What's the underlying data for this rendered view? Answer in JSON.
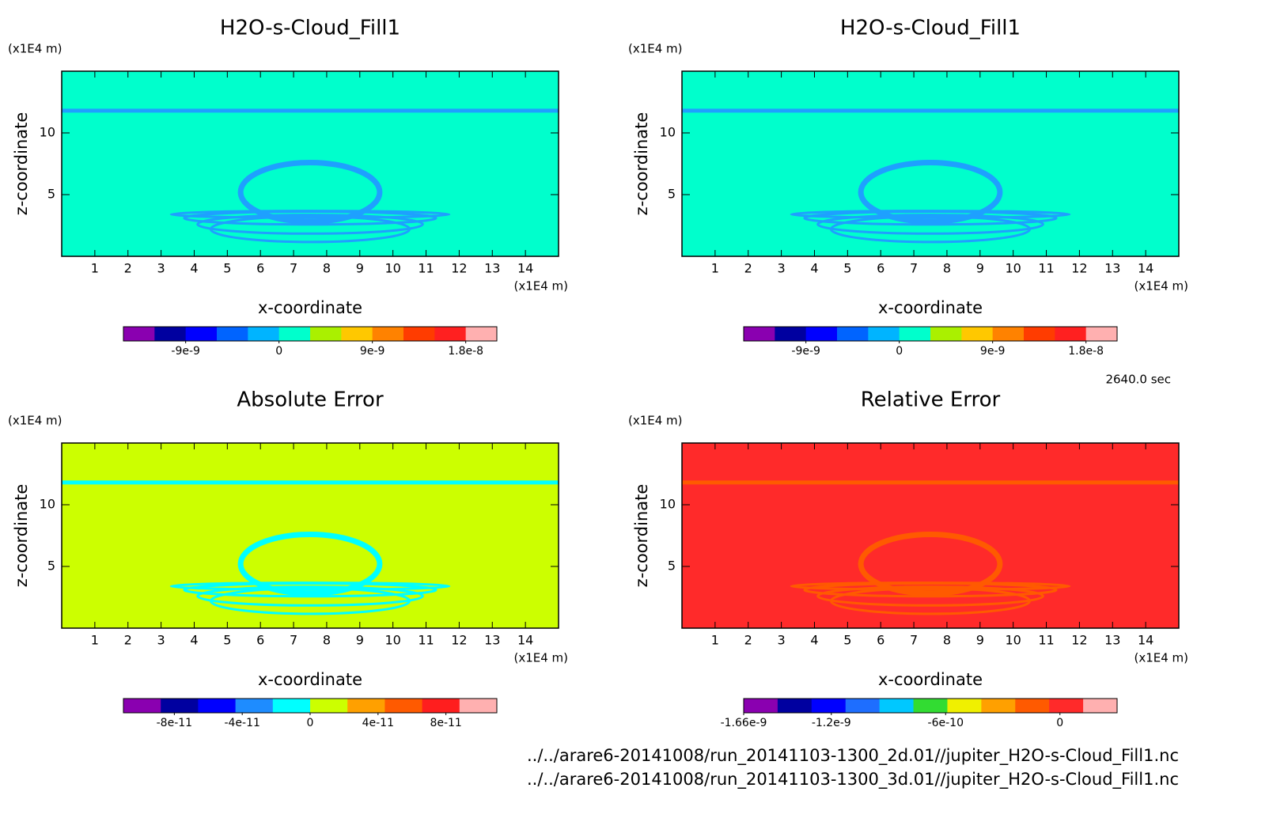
{
  "chart_data": [
    {
      "type": "contour",
      "title": "H2O-s-Cloud_Fill1",
      "xlabel": "x-coordinate",
      "ylabel": "z-coordinate",
      "xunit": "(x1E4 m)",
      "yunit": "(x1E4 m)",
      "xlim": [
        0,
        15
      ],
      "ylim": [
        0,
        15
      ],
      "xticks": [
        1,
        2,
        3,
        4,
        5,
        6,
        7,
        8,
        9,
        10,
        11,
        12,
        13,
        14
      ],
      "yticks": [
        5,
        10
      ],
      "field_color": "#00ffcc",
      "feature_color": "#1ea0ff",
      "colorbar": {
        "clim": [
          -1.5e-08,
          2.1e-08
        ],
        "ticks": [
          -9e-09,
          0,
          9e-09,
          1.8e-08
        ],
        "colors": [
          "#8a00b0",
          "#0000a0",
          "#0000ff",
          "#0064ff",
          "#00b4ff",
          "#00ffcc",
          "#aaf000",
          "#ffc800",
          "#ff8200",
          "#ff3c00",
          "#ff2020",
          "#ffb0b0"
        ]
      }
    },
    {
      "type": "contour",
      "title": "H2O-s-Cloud_Fill1",
      "xlabel": "x-coordinate",
      "ylabel": "z-coordinate",
      "xunit": "(x1E4 m)",
      "yunit": "(x1E4 m)",
      "xlim": [
        0,
        15
      ],
      "ylim": [
        0,
        15
      ],
      "xticks": [
        1,
        2,
        3,
        4,
        5,
        6,
        7,
        8,
        9,
        10,
        11,
        12,
        13,
        14
      ],
      "yticks": [
        5,
        10
      ],
      "field_color": "#00ffcc",
      "feature_color": "#1ea0ff",
      "colorbar": {
        "clim": [
          -1.5e-08,
          2.1e-08
        ],
        "ticks": [
          -9e-09,
          0,
          9e-09,
          1.8e-08
        ],
        "colors": [
          "#8a00b0",
          "#0000a0",
          "#0000ff",
          "#0064ff",
          "#00b4ff",
          "#00ffcc",
          "#aaf000",
          "#ffc800",
          "#ff8200",
          "#ff3c00",
          "#ff2020",
          "#ffb0b0"
        ]
      }
    },
    {
      "type": "contour",
      "title": "Absolute Error",
      "xlabel": "x-coordinate",
      "ylabel": "z-coordinate",
      "xunit": "(x1E4 m)",
      "yunit": "(x1E4 m)",
      "xlim": [
        0,
        15
      ],
      "ylim": [
        0,
        15
      ],
      "xticks": [
        1,
        2,
        3,
        4,
        5,
        6,
        7,
        8,
        9,
        10,
        11,
        12,
        13,
        14
      ],
      "yticks": [
        5,
        10
      ],
      "field_color": "#ccff00",
      "feature_color": "#00ffff",
      "colorbar": {
        "clim": [
          -1.1e-10,
          1.1e-10
        ],
        "ticks": [
          -8e-11,
          -4e-11,
          0,
          4e-11,
          8e-11
        ],
        "colors": [
          "#8a00b0",
          "#0000a0",
          "#0000ff",
          "#1e8cff",
          "#00ffff",
          "#ccff00",
          "#ffa000",
          "#ff5a00",
          "#ff1e1e",
          "#ffb0b0"
        ]
      }
    },
    {
      "type": "contour",
      "title": "Relative Error",
      "xlabel": "x-coordinate",
      "ylabel": "z-coordinate",
      "xunit": "(x1E4 m)",
      "yunit": "(x1E4 m)",
      "xlim": [
        0,
        15
      ],
      "ylim": [
        0,
        15
      ],
      "xticks": [
        1,
        2,
        3,
        4,
        5,
        6,
        7,
        8,
        9,
        10,
        11,
        12,
        13,
        14
      ],
      "yticks": [
        5,
        10
      ],
      "field_color": "#ff2a2a",
      "feature_color": "#ff5a00",
      "colorbar": {
        "clim": [
          -1.66e-09,
          3e-10
        ],
        "ticks": [
          -1.66e-09,
          -1.2e-09,
          -6e-10,
          0
        ],
        "colors": [
          "#8a00b0",
          "#0000a0",
          "#0000ff",
          "#1e6eff",
          "#00c8ff",
          "#32dc32",
          "#f0f000",
          "#ffa000",
          "#ff5a00",
          "#ff2a2a",
          "#ffb0b0"
        ]
      }
    }
  ],
  "time_label": "2640.0 sec",
  "files": [
    "../../arare6-20141008/run_20141103-1300_2d.01//jupiter_H2O-s-Cloud_Fill1.nc",
    "../../arare6-20141008/run_20141103-1300_3d.01//jupiter_H2O-s-Cloud_Fill1.nc"
  ]
}
